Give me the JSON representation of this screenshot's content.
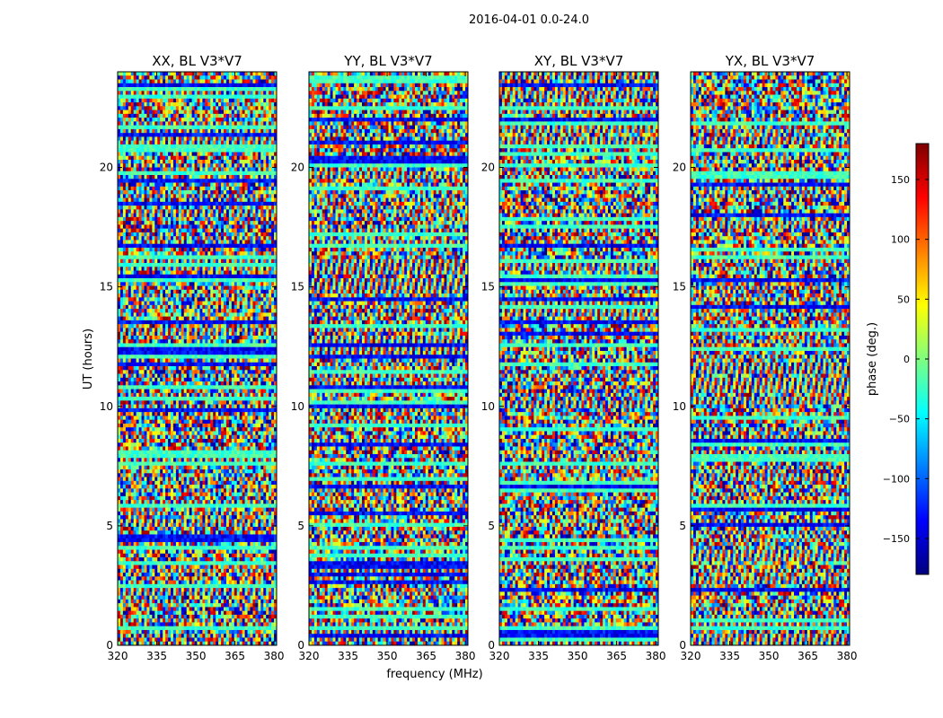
{
  "figure": {
    "suptitle": "2016-04-01 0.0-24.0"
  },
  "chart_data": {
    "type": "heatmap",
    "shared": {
      "xlabel": "frequency (MHz)",
      "ylabel": "UT (hours)",
      "xlim": [
        320,
        381
      ],
      "ylim": [
        0,
        24
      ],
      "xticks": [
        320,
        335,
        350,
        365,
        380
      ],
      "yticks": [
        0,
        5,
        10,
        15,
        20
      ]
    },
    "panels": [
      {
        "title": "XX, BL V3*V7"
      },
      {
        "title": "YY, BL V3*V7"
      },
      {
        "title": "XY, BL V3*V7"
      },
      {
        "title": "YX, BL V3*V7"
      }
    ],
    "colorbar": {
      "label": "phase (deg.)",
      "colormap": "jet",
      "vmin": -180,
      "vmax": 180,
      "ticks": [
        -150,
        -100,
        -50,
        0,
        50,
        100,
        150
      ],
      "ticklabels": [
        "−150",
        "−100",
        "−50",
        "0",
        "50",
        "100",
        "150"
      ]
    },
    "axis_labels": {
      "xticklabels": [
        "320",
        "335",
        "350",
        "365",
        "380"
      ],
      "yticklabels": [
        "0",
        "5",
        "10",
        "15",
        "20"
      ]
    }
  }
}
